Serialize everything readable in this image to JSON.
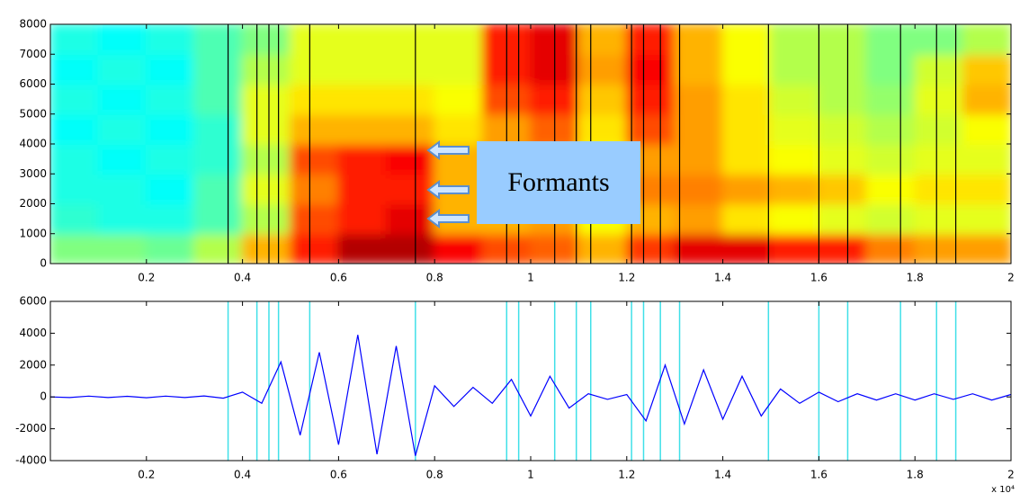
{
  "chart_data": [
    {
      "type": "heatmap",
      "xlim": [
        0,
        2
      ],
      "xticks": [
        0.2,
        0.4,
        0.6,
        0.8,
        1,
        1.2,
        1.4,
        1.6,
        1.8,
        2
      ],
      "ylim": [
        0,
        8000
      ],
      "yticks": [
        0,
        1000,
        2000,
        3000,
        4000,
        5000,
        6000,
        7000,
        8000
      ],
      "z": [
        [
          0.5,
          0.42,
          0.4,
          0.4,
          0.38,
          0.4,
          0.38,
          0.4
        ],
        [
          0.5,
          0.4,
          0.4,
          0.38,
          0.4,
          0.38,
          0.4,
          0.38
        ],
        [
          0.48,
          0.4,
          0.38,
          0.4,
          0.38,
          0.4,
          0.38,
          0.4
        ],
        [
          0.55,
          0.45,
          0.45,
          0.42,
          0.42,
          0.45,
          0.45,
          0.45
        ],
        [
          0.7,
          0.55,
          0.6,
          0.55,
          0.6,
          0.6,
          0.55,
          0.5
        ],
        [
          0.85,
          0.8,
          0.75,
          0.8,
          0.7,
          0.65,
          0.6,
          0.6
        ],
        [
          0.95,
          0.85,
          0.85,
          0.85,
          0.7,
          0.65,
          0.6,
          0.6
        ],
        [
          0.95,
          0.9,
          0.85,
          0.88,
          0.7,
          0.65,
          0.6,
          0.6
        ],
        [
          0.88,
          0.7,
          0.7,
          0.7,
          0.65,
          0.62,
          0.6,
          0.6
        ],
        [
          0.8,
          0.7,
          0.7,
          0.72,
          0.72,
          0.8,
          0.85,
          0.85
        ],
        [
          0.78,
          0.72,
          0.72,
          0.75,
          0.78,
          0.85,
          0.9,
          0.9
        ],
        [
          0.7,
          0.62,
          0.62,
          0.62,
          0.65,
          0.68,
          0.72,
          0.7
        ],
        [
          0.82,
          0.7,
          0.75,
          0.72,
          0.8,
          0.85,
          0.88,
          0.85
        ],
        [
          0.9,
          0.72,
          0.75,
          0.72,
          0.72,
          0.72,
          0.7,
          0.7
        ],
        [
          0.9,
          0.65,
          0.72,
          0.65,
          0.65,
          0.65,
          0.62,
          0.62
        ],
        [
          0.85,
          0.62,
          0.7,
          0.62,
          0.6,
          0.58,
          0.55,
          0.55
        ],
        [
          0.85,
          0.6,
          0.68,
          0.6,
          0.58,
          0.55,
          0.55,
          0.55
        ],
        [
          0.75,
          0.58,
          0.62,
          0.58,
          0.55,
          0.52,
          0.5,
          0.5
        ],
        [
          0.72,
          0.6,
          0.65,
          0.6,
          0.58,
          0.6,
          0.58,
          0.5
        ],
        [
          0.72,
          0.6,
          0.65,
          0.6,
          0.62,
          0.7,
          0.68,
          0.55
        ]
      ],
      "boundaries": [
        0.37,
        0.43,
        0.455,
        0.475,
        0.54,
        0.76,
        0.95,
        0.975,
        1.05,
        1.095,
        1.125,
        1.21,
        1.235,
        1.27,
        1.31,
        1.495,
        1.6,
        1.66,
        1.77,
        1.845,
        1.885
      ],
      "boundary_color": "#000000",
      "annotation": "Formants"
    },
    {
      "type": "line",
      "xlim": [
        0,
        2
      ],
      "xticks": [
        0.2,
        0.4,
        0.6,
        0.8,
        1,
        1.2,
        1.4,
        1.6,
        1.8,
        2
      ],
      "ylim": [
        -4000,
        6000
      ],
      "yticks": [
        -4000,
        -2000,
        0,
        2000,
        4000,
        6000
      ],
      "x": [
        0,
        0.04,
        0.08,
        0.12,
        0.16,
        0.2,
        0.24,
        0.28,
        0.32,
        0.36,
        0.4,
        0.44,
        0.48,
        0.52,
        0.56,
        0.6,
        0.64,
        0.68,
        0.72,
        0.76,
        0.8,
        0.84,
        0.88,
        0.92,
        0.96,
        1,
        1.04,
        1.08,
        1.12,
        1.16,
        1.2,
        1.24,
        1.28,
        1.32,
        1.36,
        1.4,
        1.44,
        1.48,
        1.52,
        1.56,
        1.6,
        1.64,
        1.68,
        1.72,
        1.76,
        1.8,
        1.84,
        1.88,
        1.92,
        1.96,
        2
      ],
      "values": [
        0,
        -40,
        50,
        -40,
        40,
        -50,
        50,
        -40,
        60,
        -80,
        300,
        -400,
        2200,
        -2400,
        2800,
        -3000,
        3900,
        -3600,
        3200,
        -3700,
        700,
        -600,
        600,
        -400,
        1100,
        -1200,
        1300,
        -700,
        200,
        -150,
        150,
        -1500,
        2000,
        -1700,
        1700,
        -1400,
        1300,
        -1200,
        500,
        -400,
        300,
        -300,
        200,
        -200,
        200,
        -200,
        200,
        -150,
        200,
        -200,
        150
      ],
      "color": "#0000ff",
      "boundaries": [
        0.37,
        0.43,
        0.455,
        0.475,
        0.54,
        0.76,
        0.95,
        0.975,
        1.05,
        1.095,
        1.125,
        1.21,
        1.235,
        1.27,
        1.31,
        1.495,
        1.6,
        1.66,
        1.77,
        1.845,
        1.885
      ],
      "boundary_color": "#40e0e8",
      "x_exponent_label": "x 10⁴"
    }
  ]
}
